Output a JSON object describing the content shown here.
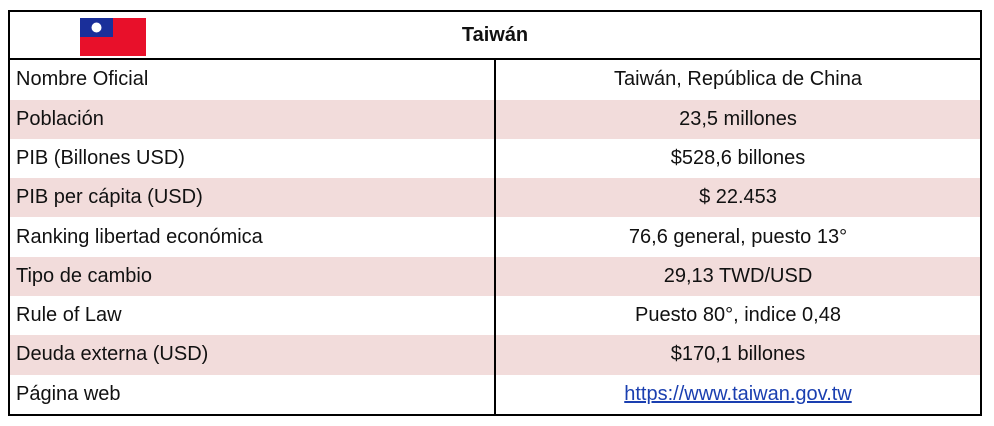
{
  "header": {
    "title": "Taiwán"
  },
  "table": {
    "rows": [
      [
        "Nombre Oficial",
        "Taiwán, República de China"
      ],
      [
        "Población",
        "23,5 millones"
      ],
      [
        "PIB (Billones USD)",
        "$528,6 billones"
      ],
      [
        "PIB per cápita (USD)",
        "$ 22.453"
      ],
      [
        "Ranking libertad económica",
        "76,6 general, puesto 13°"
      ],
      [
        "Tipo de cambio",
        "29,13 TWD/USD"
      ],
      [
        "Rule of Law",
        "Puesto 80°, indice 0,48"
      ],
      [
        "Deuda externa (USD)",
        "$170,1 billones"
      ],
      [
        "Página web",
        "https://www.taiwan.gov.tw"
      ]
    ]
  }
}
